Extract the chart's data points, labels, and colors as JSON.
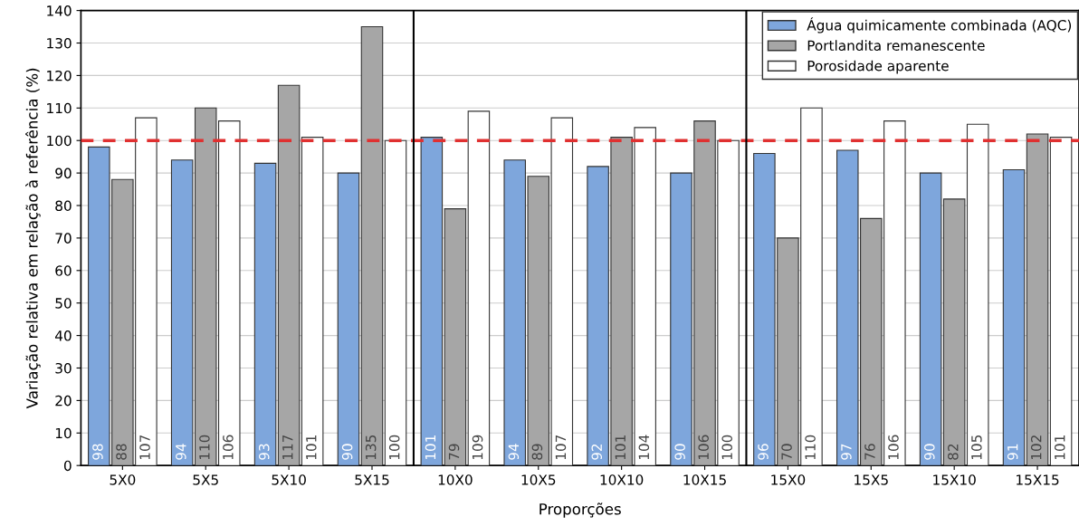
{
  "chart_data": {
    "type": "bar",
    "xlabel": "Proporções",
    "ylabel": "Variação relativa em relação à referência (%)",
    "categories": [
      "5X0",
      "5X5",
      "5X10",
      "5X15",
      "10X0",
      "10X5",
      "10X10",
      "10X15",
      "15X0",
      "15X5",
      "15X10",
      "15X15"
    ],
    "series": [
      {
        "name": "Água quimicamente combinada (AQC)",
        "color": "#7ea6dc",
        "values": [
          98,
          94,
          93,
          90,
          101,
          94,
          92,
          90,
          96,
          97,
          90,
          91
        ]
      },
      {
        "name": "Portlandita remanescente",
        "color": "#a6a6a6",
        "values": [
          88,
          110,
          117,
          135,
          79,
          89,
          101,
          106,
          70,
          76,
          82,
          102
        ]
      },
      {
        "name": "Porosidade aparente",
        "color": "#ffffff",
        "values": [
          107,
          106,
          101,
          100,
          109,
          107,
          104,
          100,
          110,
          106,
          105,
          101
        ]
      }
    ],
    "ylim": [
      0,
      140
    ],
    "yticks": [
      0,
      10,
      20,
      30,
      40,
      50,
      60,
      70,
      80,
      90,
      100,
      110,
      120,
      130,
      140
    ],
    "ref_lines": [
      {
        "axis": "y",
        "value": 100,
        "color": "#e03030",
        "line_style": "dashed"
      }
    ],
    "data_labels": true,
    "grid": "y",
    "legend": "top right"
  }
}
